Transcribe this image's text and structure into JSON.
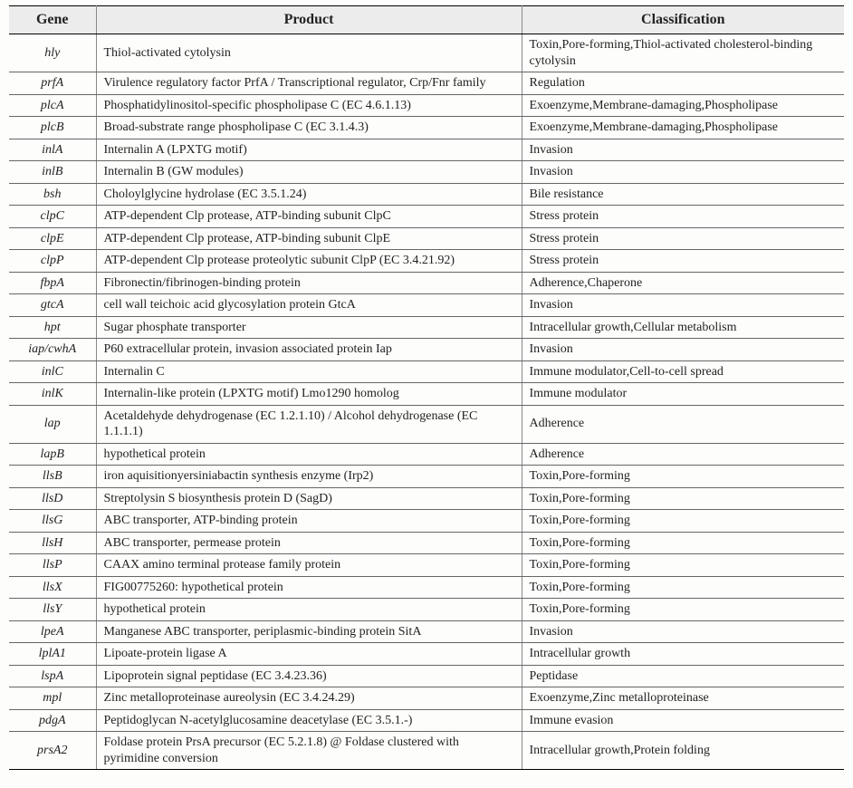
{
  "table": {
    "columns": [
      "Gene",
      "Product",
      "Classification"
    ],
    "header_fontsize": 16,
    "body_fontsize": 14,
    "header_bg": "#ececec",
    "border_color_strong": "#000000",
    "border_color": "#666666",
    "rows": [
      {
        "gene": "hly",
        "product": "Thiol-activated cytolysin",
        "classification": "Toxin,Pore-forming,Thiol-activated cholesterol-binding cytolysin"
      },
      {
        "gene": "prfA",
        "product": "Virulence regulatory factor PrfA / Transcriptional regulator, Crp/Fnr family",
        "classification": "Regulation"
      },
      {
        "gene": "plcA",
        "product": "Phosphatidylinositol-specific phospholipase C (EC 4.6.1.13)",
        "classification": "Exoenzyme,Membrane-damaging,Phospholipase"
      },
      {
        "gene": "plcB",
        "product": "Broad-substrate range phospholipase C (EC 3.1.4.3)",
        "classification": "Exoenzyme,Membrane-damaging,Phospholipase"
      },
      {
        "gene": "inlA",
        "product": "Internalin A (LPXTG motif)",
        "classification": "Invasion"
      },
      {
        "gene": "inlB",
        "product": "Internalin B (GW modules)",
        "classification": "Invasion"
      },
      {
        "gene": "bsh",
        "product": "Choloylglycine hydrolase (EC 3.5.1.24)",
        "classification": "Bile resistance"
      },
      {
        "gene": "clpC",
        "product": "ATP-dependent Clp protease, ATP-binding subunit ClpC",
        "classification": "Stress protein"
      },
      {
        "gene": "clpE",
        "product": "ATP-dependent Clp protease, ATP-binding subunit ClpE",
        "classification": "Stress protein"
      },
      {
        "gene": "clpP",
        "product": "ATP-dependent Clp protease proteolytic subunit ClpP (EC 3.4.21.92)",
        "classification": "Stress protein"
      },
      {
        "gene": "fbpA",
        "product": "Fibronectin/fibrinogen-binding protein",
        "classification": "Adherence,Chaperone"
      },
      {
        "gene": "gtcA",
        "product": "cell wall teichoic acid glycosylation protein GtcA",
        "classification": "Invasion"
      },
      {
        "gene": "hpt",
        "product": "Sugar phosphate transporter",
        "classification": "Intracellular growth,Cellular metabolism"
      },
      {
        "gene": "iap/cwhA",
        "product": "P60 extracellular protein, invasion associated protein Iap",
        "classification": "Invasion"
      },
      {
        "gene": "inlC",
        "product": "Internalin C",
        "classification": "Immune modulator,Cell-to-cell spread"
      },
      {
        "gene": "inlK",
        "product": "Internalin-like protein (LPXTG motif) Lmo1290 homolog",
        "classification": "Immune modulator"
      },
      {
        "gene": "lap",
        "product": "Acetaldehyde dehydrogenase (EC 1.2.1.10) / Alcohol dehydrogenase (EC 1.1.1.1)",
        "classification": "Adherence"
      },
      {
        "gene": "lapB",
        "product": "hypothetical protein",
        "classification": "Adherence"
      },
      {
        "gene": "llsB",
        "product": "iron aquisitionyersiniabactin synthesis enzyme (Irp2)",
        "classification": "Toxin,Pore-forming"
      },
      {
        "gene": "llsD",
        "product": "Streptolysin S biosynthesis protein D (SagD)",
        "classification": "Toxin,Pore-forming"
      },
      {
        "gene": "llsG",
        "product": "ABC transporter, ATP-binding protein",
        "classification": "Toxin,Pore-forming"
      },
      {
        "gene": "llsH",
        "product": "ABC transporter, permease protein",
        "classification": "Toxin,Pore-forming"
      },
      {
        "gene": "llsP",
        "product": "CAAX amino terminal protease family protein",
        "classification": "Toxin,Pore-forming"
      },
      {
        "gene": "llsX",
        "product": "FIG00775260: hypothetical protein",
        "classification": "Toxin,Pore-forming"
      },
      {
        "gene": "llsY",
        "product": "hypothetical protein",
        "classification": "Toxin,Pore-forming"
      },
      {
        "gene": "lpeA",
        "product": "Manganese ABC transporter, periplasmic-binding protein SitA",
        "classification": "Invasion"
      },
      {
        "gene": "lplA1",
        "product": "Lipoate-protein ligase A",
        "classification": "Intracellular growth"
      },
      {
        "gene": "lspA",
        "product": "Lipoprotein signal peptidase (EC 3.4.23.36)",
        "classification": "Peptidase"
      },
      {
        "gene": "mpl",
        "product": "Zinc metalloproteinase aureolysin (EC 3.4.24.29)",
        "classification": "Exoenzyme,Zinc metalloproteinase"
      },
      {
        "gene": "pdgA",
        "product": "Peptidoglycan N-acetylglucosamine deacetylase (EC 3.5.1.-)",
        "classification": "Immune evasion"
      },
      {
        "gene": "prsA2",
        "product": "Foldase protein PrsA precursor (EC 5.2.1.8) @ Foldase clustered with pyrimidine conversion",
        "classification": "Intracellular growth,Protein folding"
      }
    ]
  }
}
